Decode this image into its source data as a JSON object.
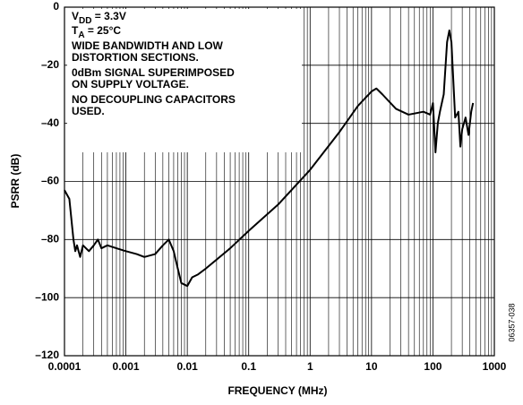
{
  "chart_data": {
    "type": "line",
    "xlabel": "FREQUENCY (MHz)",
    "ylabel": "PSRR (dB)",
    "figure_id": "06357-038",
    "log_x": true,
    "grid": true,
    "xlim": [
      0.0001,
      1000
    ],
    "ylim": [
      -120,
      0
    ],
    "xticks": [
      0.0001,
      0.001,
      0.01,
      0.1,
      1,
      10,
      100,
      1000
    ],
    "yticks": [
      {
        "value": -120,
        "label": "–120"
      },
      {
        "value": -100,
        "label": "–100"
      },
      {
        "value": -80,
        "label": "–80"
      },
      {
        "value": -60,
        "label": "–60"
      },
      {
        "value": -40,
        "label": "–40"
      },
      {
        "value": -20,
        "label": "–20"
      },
      0
    ],
    "annotations": [
      {
        "main": "V",
        "sub": "DD",
        "rest": " = 3.3V"
      },
      {
        "main": "T",
        "sub": "A",
        "rest": " = 25°C"
      },
      {
        "main": "WIDE BANDWIDTH AND LOW"
      },
      {
        "main": "DISTORTION SECTIONS."
      },
      {
        "main": "0dBm SIGNAL SUPERIMPOSED"
      },
      {
        "main": "ON SUPPLY VOLTAGE."
      },
      {
        "main": "NO DECOUPLING CAPACITORS"
      },
      {
        "main": "USED."
      }
    ],
    "series": [
      {
        "color": "#000000",
        "x": [
          0.0001,
          0.00012,
          0.00014,
          0.00015,
          0.00016,
          0.00018,
          0.0002,
          0.00025,
          0.0003,
          0.00035,
          0.0004,
          0.0005,
          0.0007,
          0.001,
          0.0015,
          0.002,
          0.003,
          0.004,
          0.005,
          0.006,
          0.007,
          0.008,
          0.01,
          0.012,
          0.015,
          0.02,
          0.05,
          0.1,
          0.3,
          1,
          3,
          6,
          10,
          12,
          15,
          25,
          40,
          70,
          90,
          100,
          110,
          120,
          130,
          150,
          170,
          185,
          200,
          230,
          260,
          280,
          300,
          340,
          380,
          420,
          450
        ],
        "values": [
          -63,
          -66,
          -80,
          -84,
          -82,
          -86,
          -82,
          -84,
          -82,
          -80,
          -83,
          -82,
          -83,
          -84,
          -85,
          -86,
          -85,
          -82,
          -80,
          -84,
          -90,
          -95,
          -96,
          -93,
          -92,
          -90,
          -83,
          -77,
          -68,
          -56,
          -43,
          -34,
          -29,
          -28,
          -30,
          -35,
          -37,
          -36,
          -37,
          -33,
          -50,
          -40,
          -36,
          -30,
          -12,
          -8,
          -12,
          -38,
          -36,
          -48,
          -42,
          -38,
          -44,
          -36,
          -33
        ]
      }
    ]
  }
}
